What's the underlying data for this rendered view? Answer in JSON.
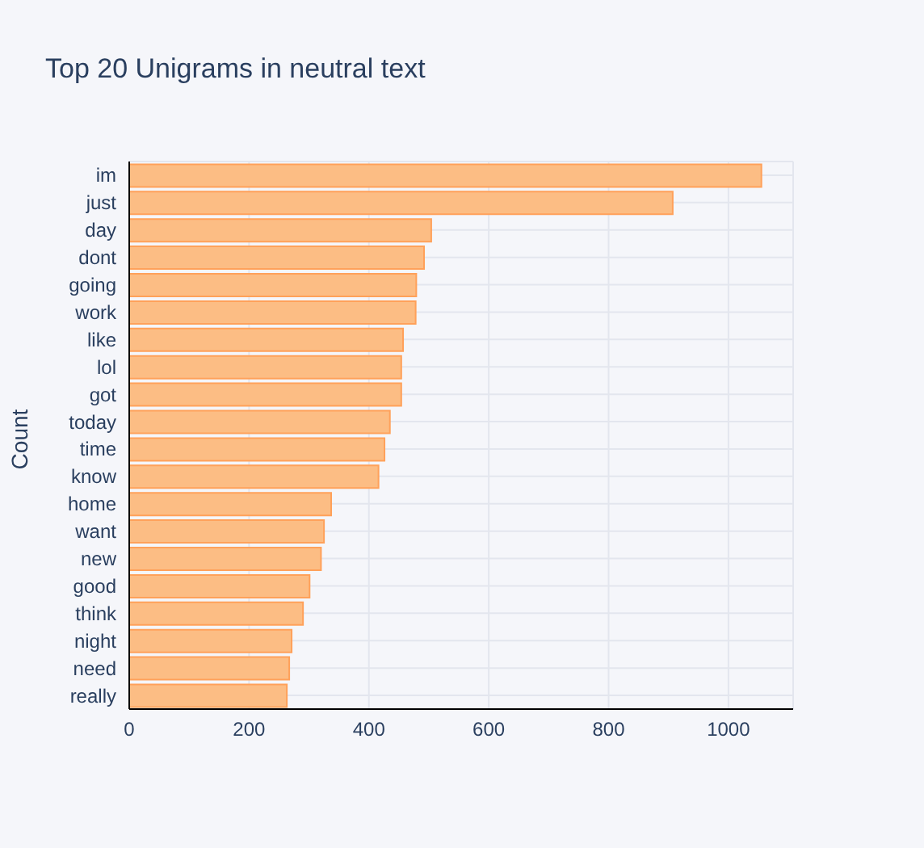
{
  "chart_data": {
    "type": "bar",
    "orientation": "horizontal",
    "title": "Top 20 Unigrams in neutral text",
    "ylabel": "Count",
    "categories": [
      "im",
      "just",
      "day",
      "dont",
      "going",
      "work",
      "like",
      "lol",
      "got",
      "today",
      "time",
      "know",
      "home",
      "want",
      "new",
      "good",
      "think",
      "night",
      "need",
      "really"
    ],
    "values": [
      1055,
      907,
      504,
      492,
      479,
      478,
      457,
      454,
      454,
      435,
      426,
      416,
      337,
      325,
      320,
      301,
      290,
      271,
      267,
      263
    ],
    "color": "#fcbd84",
    "xlim": [
      0,
      1108
    ],
    "xticks": [
      0,
      200,
      400,
      600,
      800,
      1000
    ],
    "grid": true
  }
}
